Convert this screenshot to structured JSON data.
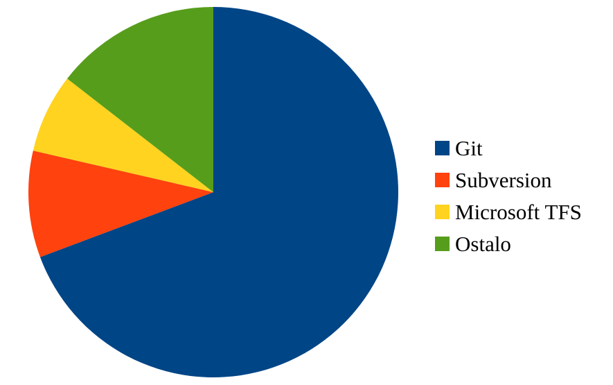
{
  "chart_data": {
    "type": "pie",
    "title": "",
    "start": "top",
    "direction": "clockwise",
    "legend_position": "right",
    "slices": [
      {
        "label": "Git",
        "value": 69.3,
        "color": "#004586"
      },
      {
        "label": "Subversion",
        "value": 9.3,
        "color": "#ff420e"
      },
      {
        "label": "Microsoft TFS",
        "value": 6.9,
        "color": "#ffd320"
      },
      {
        "label": "Ostalo",
        "value": 14.5,
        "color": "#579d1c"
      }
    ]
  }
}
